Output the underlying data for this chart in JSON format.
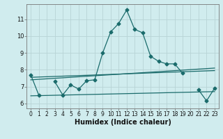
{
  "xlabel": "Humidex (Indice chaleur)",
  "bg_color": "#d0ecee",
  "grid_color": "#b8d4d6",
  "line_color": "#1a6b6b",
  "x_ticks": [
    0,
    1,
    2,
    3,
    4,
    5,
    6,
    7,
    8,
    9,
    10,
    11,
    12,
    13,
    14,
    15,
    16,
    17,
    18,
    19,
    20,
    21,
    22,
    23
  ],
  "ylim": [
    5.7,
    11.9
  ],
  "xlim": [
    -0.5,
    23.5
  ],
  "yticks": [
    6,
    7,
    8,
    9,
    10,
    11
  ],
  "line1_y": [
    7.7,
    6.5,
    null,
    7.3,
    6.5,
    7.1,
    6.85,
    7.35,
    7.4,
    9.0,
    10.25,
    10.75,
    11.55,
    10.4,
    10.2,
    8.8,
    8.5,
    8.35,
    8.35,
    7.8,
    null,
    6.8,
    6.15,
    6.9
  ],
  "line2_start": 7.55,
  "line2_end": 7.95,
  "line3_start": 7.4,
  "line3_end": 8.1,
  "line4_start": 6.45,
  "line4_end": 6.7
}
